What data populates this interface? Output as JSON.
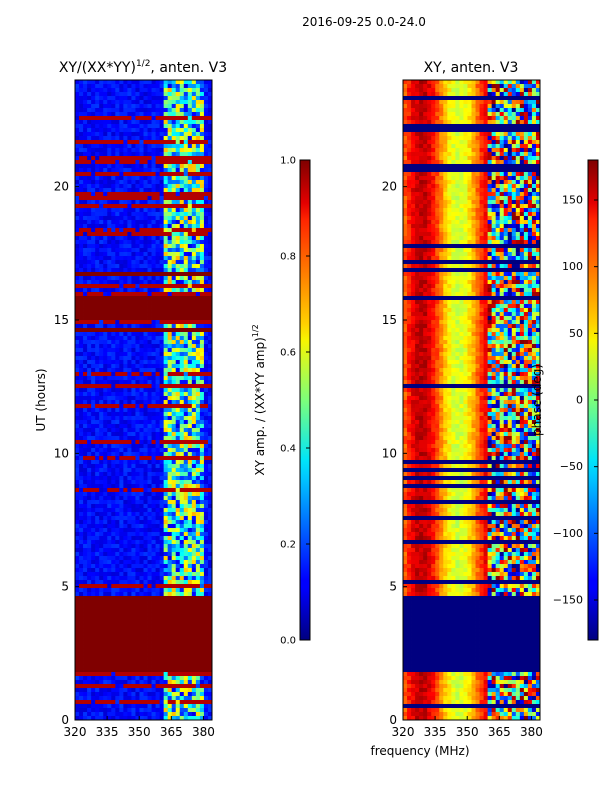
{
  "suptitle": "2016-09-25 0.0-24.0",
  "chart_data": [
    {
      "type": "heatmap",
      "title_main": "XY/(XX*YY)",
      "title_sup": "1/2",
      "title_rest": ", anten. V3",
      "ylabel": "UT (hours)",
      "xlim": [
        320,
        384
      ],
      "ylim": [
        0,
        24
      ],
      "xticks": [
        320,
        335,
        350,
        365,
        380
      ],
      "yticks": [
        0,
        5,
        10,
        15,
        20
      ],
      "colorbar": {
        "label_main": "XY amp. / (XX*YY amp)",
        "label_sup": "1/2",
        "range": [
          0.0,
          1.0
        ],
        "ticks": [
          "0.0",
          "0.2",
          "0.4",
          "0.6",
          "0.8",
          "1.0"
        ]
      },
      "saturated_bands_hours": [
        [
          1.85,
          4.7
        ],
        [
          15.05,
          15.95
        ],
        [
          14.5,
          14.7
        ],
        [
          16.6,
          16.85
        ]
      ],
      "high_amp_freq_range_mhz": [
        361,
        380
      ]
    },
    {
      "type": "heatmap",
      "title_main": "XY, anten. V3",
      "xlabel": "frequency (MHz)",
      "xlim": [
        320,
        384
      ],
      "ylim": [
        0,
        24
      ],
      "xticks": [
        320,
        335,
        350,
        365,
        380
      ],
      "yticks": [
        0,
        5,
        10,
        15,
        20
      ],
      "colorbar": {
        "label_main": "phase (deg)",
        "range": [
          -180,
          180
        ],
        "ticks": [
          "150",
          "100",
          "50",
          "0",
          "−50",
          "−100",
          "−150"
        ]
      },
      "flagged_band_hours": [
        1.85,
        4.7
      ]
    }
  ]
}
